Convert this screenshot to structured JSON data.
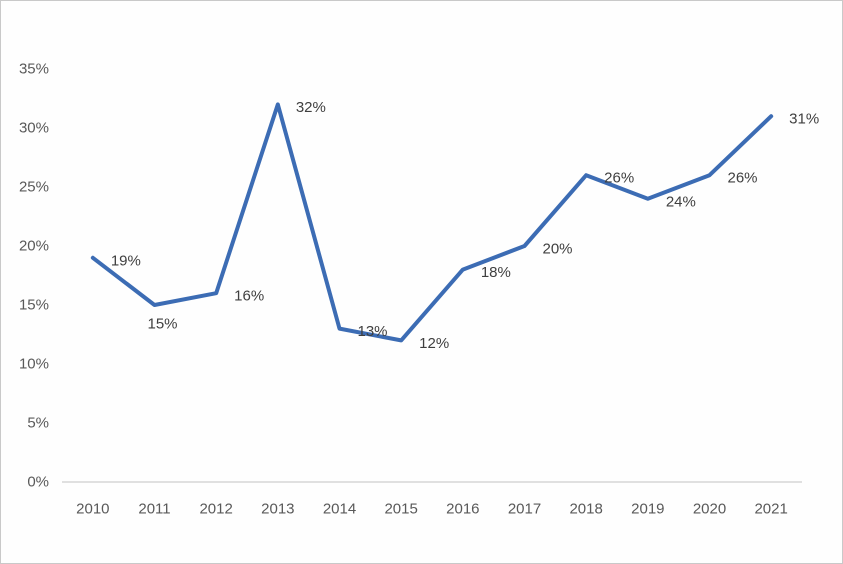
{
  "chart": {
    "background": "#fefefe",
    "border_color": "#c9c9c9"
  },
  "chart_data": {
    "type": "line",
    "title": "",
    "xlabel": "",
    "ylabel": "",
    "categories": [
      "2010",
      "2011",
      "2012",
      "2013",
      "2014",
      "2015",
      "2016",
      "2017",
      "2018",
      "2019",
      "2020",
      "2021"
    ],
    "values": [
      19,
      15,
      16,
      32,
      13,
      12,
      18,
      20,
      26,
      24,
      26,
      31
    ],
    "data_labels": [
      "19%",
      "15%",
      "16%",
      "32%",
      "13%",
      "12%",
      "18%",
      "20%",
      "26%",
      "24%",
      "26%",
      "31%"
    ],
    "ylim": [
      0,
      35
    ],
    "y_tick_step": 5,
    "y_tick_labels": [
      "0%",
      "5%",
      "10%",
      "15%",
      "20%",
      "25%",
      "30%",
      "35%"
    ],
    "grid": false,
    "legend": "none",
    "line_color": "#3c6cb4",
    "line_width": 4,
    "axis_line_color": "#d6d6d6",
    "tick_label_color": "#595959",
    "data_label_color": "#3f3f3f",
    "label_placement_hint": {
      "default_offset": [
        18,
        3
      ],
      "overrides": {
        "1": [
          -7,
          19
        ]
      }
    }
  }
}
